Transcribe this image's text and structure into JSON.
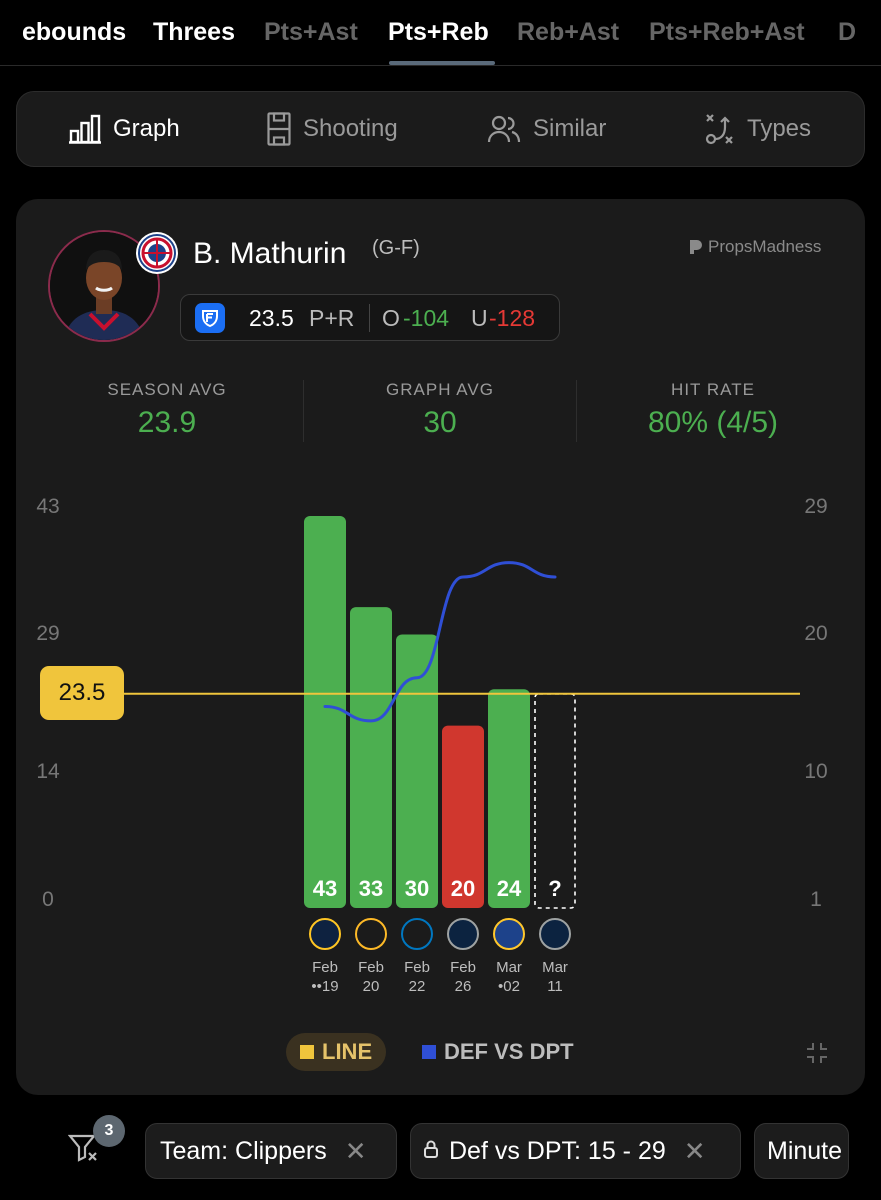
{
  "stat_tabs": [
    {
      "label": "ebounds"
    },
    {
      "label": "Threes"
    },
    {
      "label": "Pts+Ast"
    },
    {
      "label": "Pts+Reb"
    },
    {
      "label": "Reb+Ast"
    },
    {
      "label": "Pts+Reb+Ast"
    },
    {
      "label": "D"
    }
  ],
  "view_tabs": [
    {
      "label": "Graph",
      "icon": "bar-chart-icon"
    },
    {
      "label": "Shooting",
      "icon": "court-icon"
    },
    {
      "label": "Similar",
      "icon": "users-icon"
    },
    {
      "label": "Types",
      "icon": "play-diagram-icon"
    }
  ],
  "player": {
    "name": "B. Mathurin",
    "position": "(G-F)",
    "brand": "PropsMadness",
    "line_value": "23.5",
    "line_stat": "P+R",
    "over_label": "O",
    "over_odds": "-104",
    "under_label": "U",
    "under_odds": "-128"
  },
  "summary": {
    "season_avg_label": "SEASON AVG",
    "season_avg": "23.9",
    "graph_avg_label": "GRAPH AVG",
    "graph_avg": "30",
    "hit_rate_label": "HIT RATE",
    "hit_rate": "80% (4/5)"
  },
  "chart_data": {
    "type": "bar",
    "line": 23.5,
    "line_label": "23.5",
    "left_axis_ticks": [
      "43",
      "29",
      "14",
      "0"
    ],
    "right_axis_ticks": [
      "29",
      "20",
      "10",
      "1"
    ],
    "categories": [
      {
        "month": "Feb",
        "day": "19",
        "dots": "••",
        "opponent": "Nuggets"
      },
      {
        "month": "Feb",
        "day": "20",
        "dots": "",
        "opponent": "Lakers"
      },
      {
        "month": "Feb",
        "day": "22",
        "dots": "",
        "opponent": "Magic"
      },
      {
        "month": "Feb",
        "day": "26",
        "dots": "",
        "opponent": "Timberwolves"
      },
      {
        "month": "Mar",
        "day": "02",
        "dots": "•",
        "opponent": "Warriors"
      },
      {
        "month": "Mar",
        "day": "11",
        "dots": "",
        "opponent": "Timberwolves"
      }
    ],
    "values": [
      43,
      33,
      30,
      20,
      24,
      null
    ],
    "value_labels": [
      "43",
      "33",
      "30",
      "20",
      "24",
      "?"
    ],
    "def_vs_dpt": [
      15,
      14,
      17,
      24,
      25,
      24
    ],
    "colors": {
      "hit": "#4caf50",
      "miss": "#d0372e",
      "line": "#f0c53c",
      "def": "#2f4fd6"
    }
  },
  "legend": {
    "line_label": "LINE",
    "def_label": "DEF VS DPT"
  },
  "filters": {
    "count": "3",
    "chips": [
      {
        "label": "Team: Clippers",
        "locked": false
      },
      {
        "label": "Def vs DPT: 15 - 29",
        "locked": true
      },
      {
        "label": "Minute",
        "locked": false
      }
    ]
  }
}
